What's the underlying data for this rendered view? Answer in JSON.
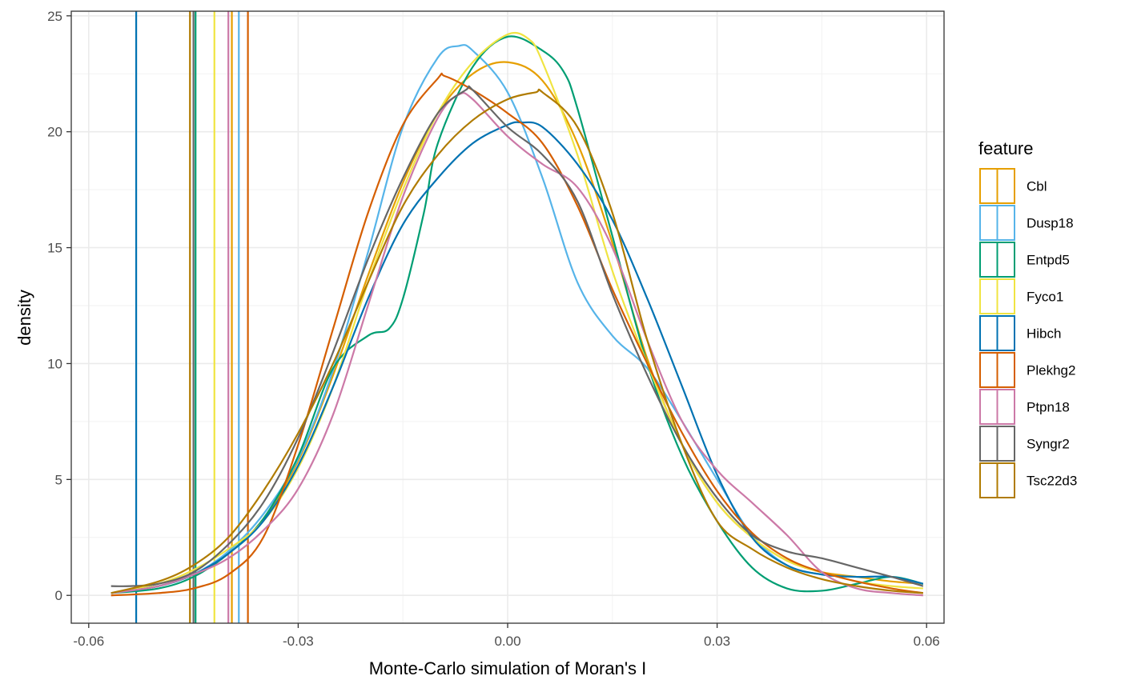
{
  "chart_data": {
    "type": "line",
    "title": "",
    "xlabel": "Monte-Carlo simulation of Moran's I",
    "ylabel": "density",
    "xlim": [
      -0.0625,
      0.0625
    ],
    "ylim": [
      -1.2,
      25.2
    ],
    "x_ticks": [
      -0.06,
      -0.03,
      0.0,
      0.03,
      0.06
    ],
    "x_tick_labels": [
      "-0.06",
      "-0.03",
      "0.00",
      "0.03",
      "0.06"
    ],
    "y_ticks": [
      0,
      5,
      10,
      15,
      20,
      25
    ],
    "y_tick_labels": [
      "0",
      "5",
      "10",
      "15",
      "20",
      "25"
    ],
    "grid": true,
    "legend": {
      "title": "feature",
      "position": "right"
    },
    "series": [
      {
        "name": "Cbl",
        "color": "#E69F00",
        "observed": -0.0395,
        "x": [
          -0.0568,
          -0.05,
          -0.045,
          -0.04,
          -0.035,
          -0.03,
          -0.025,
          -0.02,
          -0.015,
          -0.01,
          -0.005,
          0.0,
          0.005,
          0.01,
          0.015,
          0.02,
          0.025,
          0.03,
          0.035,
          0.04,
          0.045,
          0.05,
          0.055,
          0.0595
        ],
        "y": [
          0.1,
          0.4,
          0.9,
          1.8,
          3.3,
          5.8,
          9.5,
          13.8,
          17.8,
          20.8,
          22.5,
          23.0,
          22.2,
          19.5,
          15.2,
          10.2,
          6.5,
          4.0,
          2.5,
          1.5,
          1.0,
          0.8,
          0.6,
          0.5
        ]
      },
      {
        "name": "Dusp18",
        "color": "#56B4E9",
        "observed": -0.0385,
        "x": [
          -0.0568,
          -0.05,
          -0.045,
          -0.04,
          -0.035,
          -0.03,
          -0.025,
          -0.02,
          -0.015,
          -0.01,
          -0.007,
          -0.005,
          0.0,
          0.005,
          0.01,
          0.015,
          0.02,
          0.025,
          0.03,
          0.035,
          0.04,
          0.045,
          0.05,
          0.055,
          0.0595
        ],
        "y": [
          0.1,
          0.4,
          0.9,
          1.9,
          3.5,
          5.9,
          9.7,
          14.8,
          20.2,
          23.2,
          23.7,
          23.5,
          21.7,
          18.0,
          13.5,
          11.2,
          9.8,
          7.5,
          5.0,
          2.6,
          1.3,
          0.9,
          0.8,
          0.8,
          0.5
        ]
      },
      {
        "name": "Entpd5",
        "color": "#009E73",
        "observed": -0.0447,
        "x": [
          -0.0568,
          -0.05,
          -0.045,
          -0.04,
          -0.035,
          -0.03,
          -0.025,
          -0.02,
          -0.017,
          -0.015,
          -0.012,
          -0.01,
          -0.005,
          0.0,
          0.005,
          0.008,
          0.01,
          0.015,
          0.02,
          0.025,
          0.03,
          0.035,
          0.04,
          0.045,
          0.05,
          0.055,
          0.0595
        ],
        "y": [
          0.1,
          0.3,
          0.8,
          1.8,
          3.3,
          6.0,
          9.8,
          11.2,
          11.5,
          12.8,
          16.5,
          19.5,
          22.8,
          24.1,
          23.5,
          22.6,
          21.0,
          15.5,
          10.0,
          6.0,
          3.2,
          1.2,
          0.3,
          0.2,
          0.5,
          0.8,
          0.5
        ]
      },
      {
        "name": "Fyco1",
        "color": "#F0E442",
        "observed": -0.042,
        "x": [
          -0.0568,
          -0.05,
          -0.045,
          -0.04,
          -0.035,
          -0.03,
          -0.025,
          -0.02,
          -0.015,
          -0.01,
          -0.005,
          0.0,
          0.003,
          0.005,
          0.01,
          0.015,
          0.02,
          0.025,
          0.03,
          0.035,
          0.04,
          0.045,
          0.05,
          0.055,
          0.0595
        ],
        "y": [
          0.1,
          0.5,
          1.1,
          2.0,
          3.2,
          5.5,
          9.0,
          13.5,
          17.5,
          20.8,
          23.0,
          24.2,
          24.0,
          23.0,
          19.0,
          14.0,
          10.0,
          6.5,
          4.0,
          2.5,
          1.5,
          1.0,
          0.6,
          0.4,
          0.3
        ]
      },
      {
        "name": "Hibch",
        "color": "#0072B2",
        "observed": -0.0532,
        "x": [
          -0.0568,
          -0.05,
          -0.045,
          -0.04,
          -0.035,
          -0.03,
          -0.025,
          -0.02,
          -0.015,
          -0.01,
          -0.005,
          0.0,
          0.002,
          0.005,
          0.01,
          0.015,
          0.02,
          0.025,
          0.03,
          0.035,
          0.04,
          0.045,
          0.05,
          0.055,
          0.0595
        ],
        "y": [
          0.1,
          0.4,
          0.9,
          1.8,
          3.2,
          5.6,
          9.0,
          12.8,
          16.0,
          18.0,
          19.5,
          20.3,
          20.4,
          20.2,
          18.6,
          16.2,
          12.8,
          9.0,
          5.2,
          2.5,
          1.3,
          0.9,
          0.8,
          0.8,
          0.5
        ]
      },
      {
        "name": "Plekhg2",
        "color": "#D55E00",
        "observed": -0.0372,
        "x": [
          -0.0568,
          -0.05,
          -0.045,
          -0.04,
          -0.035,
          -0.03,
          -0.025,
          -0.02,
          -0.015,
          -0.01,
          -0.009,
          -0.005,
          0.0,
          0.005,
          0.01,
          0.015,
          0.02,
          0.025,
          0.03,
          0.035,
          0.04,
          0.045,
          0.05,
          0.055,
          0.0595
        ],
        "y": [
          0.0,
          0.1,
          0.3,
          0.9,
          2.5,
          6.5,
          11.5,
          16.5,
          20.3,
          22.3,
          22.4,
          21.8,
          20.8,
          19.5,
          16.8,
          13.2,
          10.0,
          7.0,
          4.5,
          2.7,
          1.6,
          1.0,
          0.6,
          0.3,
          0.1
        ]
      },
      {
        "name": "Ptpn18",
        "color": "#CC79A7",
        "observed": -0.04,
        "x": [
          -0.0568,
          -0.05,
          -0.045,
          -0.04,
          -0.035,
          -0.03,
          -0.025,
          -0.02,
          -0.015,
          -0.01,
          -0.007,
          -0.005,
          0.0,
          0.005,
          0.01,
          0.015,
          0.02,
          0.025,
          0.03,
          0.035,
          0.04,
          0.045,
          0.05,
          0.055,
          0.0595
        ],
        "y": [
          0.1,
          0.4,
          0.9,
          1.6,
          2.8,
          4.6,
          7.8,
          12.5,
          17.2,
          20.6,
          21.6,
          21.4,
          19.8,
          18.6,
          17.6,
          15.0,
          11.0,
          7.5,
          5.4,
          4.0,
          2.6,
          1.0,
          0.3,
          0.1,
          0.0
        ]
      },
      {
        "name": "Syngr2",
        "color": "#666666",
        "observed": -0.045,
        "x": [
          -0.0568,
          -0.054,
          -0.05,
          -0.045,
          -0.04,
          -0.035,
          -0.03,
          -0.025,
          -0.02,
          -0.015,
          -0.01,
          -0.006,
          -0.005,
          0.0,
          0.005,
          0.01,
          0.015,
          0.02,
          0.025,
          0.03,
          0.035,
          0.04,
          0.045,
          0.05,
          0.055,
          0.0595
        ],
        "y": [
          0.4,
          0.4,
          0.5,
          1.0,
          2.2,
          4.0,
          6.8,
          10.5,
          14.5,
          18.0,
          20.8,
          21.8,
          21.8,
          20.2,
          19.0,
          17.0,
          13.0,
          9.5,
          6.5,
          4.2,
          2.6,
          1.9,
          1.6,
          1.2,
          0.8,
          0.4
        ]
      },
      {
        "name": "Tsc22d3",
        "color": "#B07B00",
        "observed": -0.0455,
        "x": [
          -0.0568,
          -0.05,
          -0.045,
          -0.04,
          -0.035,
          -0.03,
          -0.025,
          -0.02,
          -0.015,
          -0.01,
          -0.005,
          0.0,
          0.004,
          0.005,
          0.01,
          0.015,
          0.02,
          0.025,
          0.03,
          0.035,
          0.04,
          0.045,
          0.05,
          0.055,
          0.0595
        ],
        "y": [
          0.1,
          0.6,
          1.3,
          2.5,
          4.5,
          7.0,
          10.0,
          13.5,
          16.8,
          19.0,
          20.5,
          21.4,
          21.7,
          21.7,
          20.2,
          16.5,
          11.0,
          6.5,
          3.2,
          2.0,
          1.2,
          0.7,
          0.4,
          0.2,
          0.1
        ]
      }
    ]
  }
}
